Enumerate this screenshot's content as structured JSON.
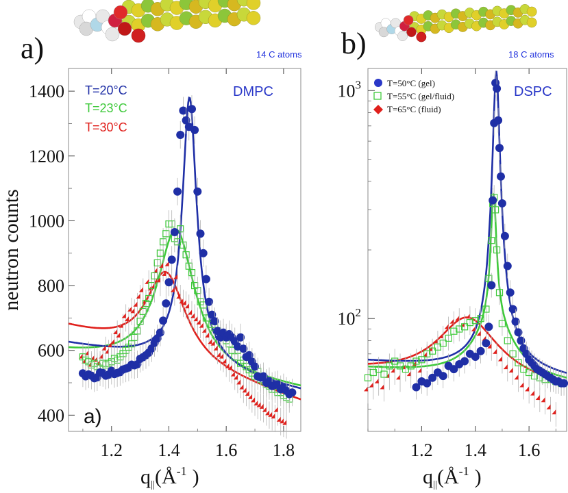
{
  "colors": {
    "blue": "#1f2fa6",
    "green": "#3ec93a",
    "red": "#e0201c",
    "legend_blue": "#2a38c8",
    "annotation_blue": "#2233dd",
    "error_bar": "#b4b4b4"
  },
  "panel_a": {
    "panel_label": "a)",
    "inset_label": "a)",
    "molecule_caption": "14 C atoms",
    "sample_name": "DMPC"
  },
  "panel_b": {
    "panel_label": "b)",
    "molecule_caption": "18 C atoms",
    "sample_name": "DSPC"
  },
  "chart_data": [
    {
      "type": "scatter",
      "xlabel_main": "q",
      "xlabel_sub": "||",
      "xlabel_unit": "(Å",
      "xlabel_exp": "-1",
      "xlabel_close": ")",
      "ylabel": "neutron counts",
      "xlim": [
        1.05,
        1.86
      ],
      "ylim": [
        350,
        1470
      ],
      "yscale": "linear",
      "x_ticks": [
        1.2,
        1.4,
        1.6,
        1.8
      ],
      "x_tick_labels": [
        "1.2",
        "1.4",
        "1.6",
        "1.8"
      ],
      "y_ticks": [
        400,
        600,
        800,
        1000,
        1200,
        1400
      ],
      "y_tick_labels": [
        "400",
        "600",
        "800",
        "1000",
        "1200",
        "1400"
      ],
      "legend_position": "top-left",
      "series": [
        {
          "name": "T=20°C",
          "color_key": "blue",
          "marker": "circle",
          "fit": {
            "x0": 1.472,
            "w": 0.03,
            "A": 780,
            "b0": 545,
            "b1": -180,
            "wide_A": 60,
            "wide_w": 0.14
          },
          "x": [
            1.1,
            1.11,
            1.12,
            1.13,
            1.14,
            1.15,
            1.16,
            1.17,
            1.18,
            1.19,
            1.2,
            1.21,
            1.22,
            1.23,
            1.24,
            1.25,
            1.26,
            1.27,
            1.28,
            1.29,
            1.3,
            1.31,
            1.32,
            1.33,
            1.34,
            1.35,
            1.36,
            1.37,
            1.38,
            1.39,
            1.4,
            1.41,
            1.42,
            1.43,
            1.44,
            1.45,
            1.46,
            1.47,
            1.48,
            1.49,
            1.5,
            1.51,
            1.52,
            1.53,
            1.54,
            1.55,
            1.56,
            1.57,
            1.58,
            1.59,
            1.6,
            1.61,
            1.62,
            1.63,
            1.64,
            1.65,
            1.66,
            1.67,
            1.68,
            1.69,
            1.7,
            1.71,
            1.72,
            1.73,
            1.74,
            1.75,
            1.76,
            1.77,
            1.78,
            1.79,
            1.8,
            1.81,
            1.82,
            1.83
          ],
          "y": [
            529,
            520,
            526,
            522,
            514,
            517,
            532,
            530,
            522,
            525,
            537,
            527,
            530,
            533,
            541,
            544,
            547,
            556,
            554,
            557,
            574,
            579,
            585,
            593,
            606,
            623,
            637,
            655,
            692,
            745,
            810,
            880,
            965,
            1090,
            1265,
            1340,
            1310,
            1290,
            1345,
            1280,
            1090,
            960,
            900,
            820,
            750,
            710,
            690,
            660,
            640,
            655,
            640,
            650,
            640,
            628,
            612,
            640,
            605,
            580,
            585,
            565,
            550,
            520,
            516,
            520,
            500,
            505,
            490,
            493,
            495,
            480,
            486,
            475,
            465,
            470
          ]
        },
        {
          "name": "T=23°C",
          "color_key": "green",
          "marker": "square-open",
          "fit": {
            "x0": 1.425,
            "w": 0.08,
            "A": 435,
            "b0": 535,
            "b1": -140
          },
          "x": [
            1.1,
            1.11,
            1.12,
            1.13,
            1.14,
            1.15,
            1.16,
            1.17,
            1.18,
            1.19,
            1.2,
            1.21,
            1.22,
            1.23,
            1.24,
            1.25,
            1.26,
            1.27,
            1.28,
            1.29,
            1.3,
            1.31,
            1.32,
            1.33,
            1.34,
            1.35,
            1.36,
            1.37,
            1.38,
            1.39,
            1.4,
            1.41,
            1.42,
            1.43,
            1.44,
            1.45,
            1.46,
            1.47,
            1.48,
            1.49,
            1.5,
            1.51,
            1.52,
            1.53,
            1.54,
            1.55,
            1.56,
            1.57,
            1.58,
            1.59,
            1.6,
            1.61,
            1.62,
            1.63,
            1.64,
            1.65,
            1.66,
            1.67,
            1.68,
            1.69,
            1.7,
            1.71,
            1.72,
            1.73,
            1.74,
            1.75,
            1.76,
            1.77,
            1.78,
            1.79,
            1.8,
            1.81,
            1.82
          ],
          "y": [
            580,
            570,
            565,
            555,
            560,
            550,
            545,
            560,
            555,
            560,
            565,
            575,
            570,
            580,
            590,
            600,
            610,
            620,
            640,
            660,
            690,
            720,
            745,
            760,
            800,
            830,
            870,
            900,
            935,
            960,
            990,
            990,
            945,
            935,
            975,
            925,
            895,
            860,
            840,
            800,
            785,
            750,
            740,
            700,
            700,
            680,
            670,
            660,
            650,
            640,
            630,
            620,
            600,
            580,
            600,
            560,
            570,
            550,
            540,
            530,
            520,
            535,
            510,
            505,
            495,
            490,
            480,
            480,
            470,
            470,
            460,
            455,
            450
          ]
        },
        {
          "name": "T=30°C",
          "color_key": "red",
          "marker": "diamond",
          "fit": {
            "x0": 1.39,
            "w": 0.085,
            "A": 270,
            "b0": 555,
            "b1": -280
          },
          "x": [
            1.1,
            1.11,
            1.12,
            1.13,
            1.14,
            1.15,
            1.16,
            1.17,
            1.18,
            1.19,
            1.2,
            1.21,
            1.22,
            1.23,
            1.24,
            1.25,
            1.26,
            1.27,
            1.28,
            1.29,
            1.3,
            1.31,
            1.32,
            1.33,
            1.34,
            1.35,
            1.36,
            1.37,
            1.38,
            1.39,
            1.4,
            1.41,
            1.42,
            1.43,
            1.44,
            1.45,
            1.46,
            1.47,
            1.48,
            1.49,
            1.5,
            1.51,
            1.52,
            1.53,
            1.54,
            1.55,
            1.56,
            1.57,
            1.58,
            1.59,
            1.6,
            1.61,
            1.62,
            1.63,
            1.64,
            1.65,
            1.66,
            1.67,
            1.68,
            1.69,
            1.7,
            1.71,
            1.72,
            1.73,
            1.74,
            1.75,
            1.76,
            1.77,
            1.78,
            1.79,
            1.8,
            1.81
          ],
          "y": [
            575,
            560,
            585,
            550,
            570,
            565,
            555,
            575,
            600,
            590,
            610,
            620,
            650,
            640,
            670,
            700,
            690,
            720,
            715,
            735,
            760,
            780,
            745,
            805,
            785,
            790,
            840,
            810,
            855,
            830,
            860,
            810,
            780,
            820,
            760,
            745,
            740,
            730,
            710,
            700,
            690,
            680,
            670,
            655,
            640,
            620,
            615,
            600,
            580,
            575,
            560,
            545,
            540,
            520,
            510,
            495,
            480,
            470,
            460,
            450,
            440,
            430,
            425,
            420,
            410,
            400,
            395,
            390,
            410,
            380,
            375,
            370
          ]
        }
      ]
    },
    {
      "type": "scatter",
      "xlabel_main": "q",
      "xlabel_sub": "||",
      "xlabel_unit": "(Å",
      "xlabel_exp": "-1",
      "xlabel_close": ")",
      "ylabel": "",
      "xlim": [
        1.0,
        1.74
      ],
      "ylim": [
        32,
        1250
      ],
      "yscale": "log",
      "x_ticks": [
        1.2,
        1.4,
        1.6
      ],
      "x_tick_labels": [
        "1.2",
        "1.4",
        "1.6"
      ],
      "y_ticks_major": [
        100,
        1000
      ],
      "y_tick_label_base": "10",
      "y_tick_label_exps": [
        "2",
        "3"
      ],
      "legend_position": "top-left",
      "series": [
        {
          "name": "T=50°C (gel)",
          "color_key": "blue",
          "marker": "circle",
          "fit": {
            "x0": 1.478,
            "w": 0.011,
            "A": 1150,
            "b0": 58,
            "b1": -15,
            "wide_A": 12,
            "wide_w": 0.12
          },
          "x": [
            1.18,
            1.2,
            1.22,
            1.24,
            1.26,
            1.28,
            1.3,
            1.32,
            1.34,
            1.36,
            1.38,
            1.4,
            1.42,
            1.44,
            1.45,
            1.46,
            1.465,
            1.47,
            1.475,
            1.48,
            1.485,
            1.49,
            1.495,
            1.5,
            1.51,
            1.52,
            1.53,
            1.54,
            1.55,
            1.56,
            1.57,
            1.58,
            1.59,
            1.6,
            1.61,
            1.62,
            1.63,
            1.64,
            1.65,
            1.66,
            1.67,
            1.68,
            1.69,
            1.7,
            1.71,
            1.72,
            1.73
          ],
          "y": [
            50,
            53,
            52,
            55,
            58,
            56,
            62,
            60,
            63,
            65,
            70,
            68,
            72,
            78,
            92,
            140,
            330,
            720,
            1080,
            1020,
            740,
            560,
            420,
            320,
            230,
            170,
            130,
            110,
            97,
            87,
            80,
            74,
            70,
            66,
            64,
            62,
            60,
            59,
            58,
            57,
            56,
            55,
            54,
            53,
            53,
            52,
            52
          ]
        },
        {
          "name": "T=55°C (gel/fluid)",
          "color_key": "green",
          "marker": "square-open",
          "fit": {
            "x0": 1.468,
            "w": 0.01,
            "A": 260,
            "b0": 55,
            "b1": -12,
            "wide_A": 40,
            "wide_w": 0.08
          },
          "x": [
            1.0,
            1.02,
            1.04,
            1.06,
            1.08,
            1.1,
            1.12,
            1.14,
            1.16,
            1.18,
            1.2,
            1.22,
            1.24,
            1.26,
            1.28,
            1.3,
            1.32,
            1.34,
            1.36,
            1.38,
            1.4,
            1.42,
            1.44,
            1.45,
            1.46,
            1.465,
            1.47,
            1.475,
            1.48,
            1.49,
            1.5,
            1.52,
            1.54,
            1.56,
            1.58,
            1.6,
            1.62,
            1.64,
            1.66,
            1.68,
            1.7,
            1.72
          ],
          "y": [
            55,
            58,
            60,
            57,
            62,
            65,
            62,
            60,
            62,
            65,
            66,
            70,
            72,
            75,
            78,
            82,
            88,
            90,
            92,
            96,
            98,
            100,
            110,
            150,
            220,
            320,
            340,
            300,
            200,
            130,
            95,
            80,
            70,
            64,
            60,
            58,
            56,
            55,
            54,
            54,
            53,
            52
          ]
        },
        {
          "name": "T=65°C (fluid)",
          "color_key": "red",
          "marker": "diamond",
          "fit": {
            "x0": 1.37,
            "w": 0.12,
            "A": 48,
            "b0": 52,
            "b1": -15
          },
          "x": [
            1.0,
            1.02,
            1.04,
            1.06,
            1.08,
            1.1,
            1.12,
            1.14,
            1.16,
            1.18,
            1.2,
            1.22,
            1.24,
            1.26,
            1.28,
            1.3,
            1.32,
            1.34,
            1.36,
            1.38,
            1.4,
            1.42,
            1.44,
            1.46,
            1.48,
            1.5,
            1.52,
            1.54,
            1.56,
            1.58,
            1.6,
            1.62,
            1.64,
            1.66,
            1.68,
            1.7
          ],
          "y": [
            48,
            50,
            52,
            49,
            55,
            58,
            54,
            60,
            56,
            62,
            58,
            68,
            72,
            78,
            82,
            90,
            95,
            98,
            92,
            100,
            88,
            84,
            80,
            74,
            70,
            65,
            60,
            58,
            54,
            50,
            48,
            46,
            44,
            43,
            40,
            38
          ]
        }
      ]
    }
  ]
}
